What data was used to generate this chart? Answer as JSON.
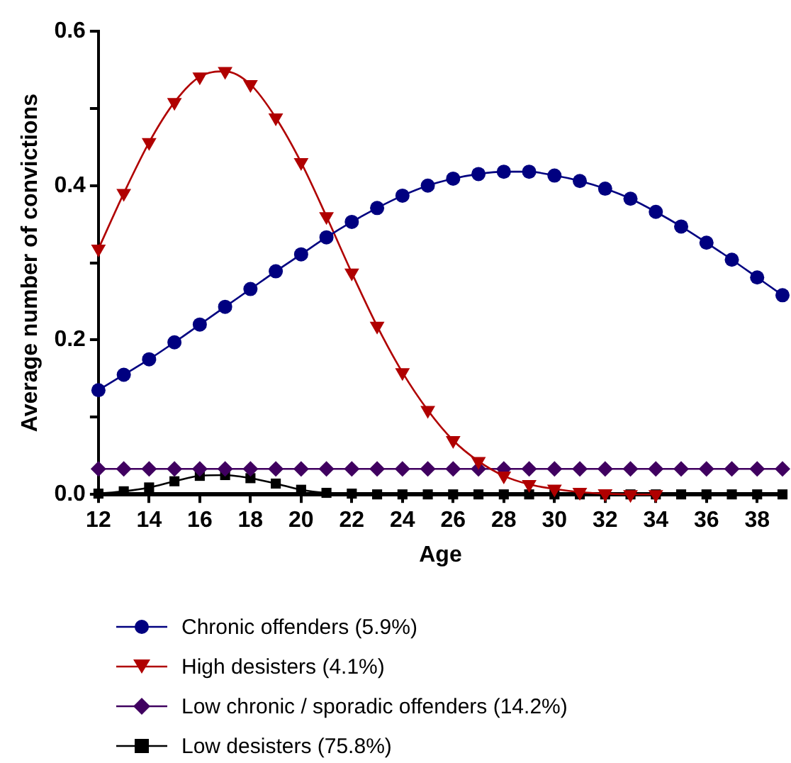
{
  "chart_data": {
    "type": "line",
    "xlabel": "Age",
    "ylabel": "Average number of convictions",
    "x": [
      12,
      13,
      14,
      15,
      16,
      17,
      18,
      19,
      20,
      21,
      22,
      23,
      24,
      25,
      26,
      27,
      28,
      29,
      30,
      31,
      32,
      33,
      34,
      35,
      36,
      37,
      38,
      39
    ],
    "xlim": [
      12,
      39
    ],
    "xticks": [
      12,
      14,
      16,
      18,
      20,
      22,
      24,
      26,
      28,
      30,
      32,
      34,
      36,
      38
    ],
    "ylim": [
      0,
      0.6
    ],
    "yticks": [
      {
        "value": 0,
        "label": "0.0"
      },
      {
        "value": 0.1,
        "label": null
      },
      {
        "value": 0.2,
        "label": "0.2"
      },
      {
        "value": 0.3,
        "label": null
      },
      {
        "value": 0.4,
        "label": "0.4"
      },
      {
        "value": 0.5,
        "label": null
      },
      {
        "value": 0.6,
        "label": "0.6"
      }
    ],
    "grid": false,
    "legend": "bottom",
    "series": [
      {
        "name": "Chronic offenders (5.9%)",
        "color": "#000080",
        "marker": "circle",
        "values": [
          0.135,
          0.155,
          0.175,
          0.197,
          0.22,
          0.243,
          0.266,
          0.289,
          0.311,
          0.333,
          0.353,
          0.371,
          0.387,
          0.4,
          0.409,
          0.415,
          0.418,
          0.418,
          0.413,
          0.406,
          0.396,
          0.383,
          0.366,
          0.347,
          0.326,
          0.304,
          0.281,
          0.258
        ]
      },
      {
        "name": "High desisters (4.1%)",
        "color": "#b00000",
        "marker": "triangle",
        "values": [
          0.318,
          0.39,
          0.456,
          0.508,
          0.541,
          0.548,
          0.531,
          0.488,
          0.43,
          0.36,
          0.287,
          0.218,
          0.158,
          0.109,
          0.07,
          0.043,
          0.024,
          0.013,
          0.007,
          0.003,
          0.001,
          0,
          0,
          null,
          null,
          null,
          null,
          null
        ]
      },
      {
        "name": "Low chronic / sporadic offenders (14.2%)",
        "color": "#400060",
        "marker": "diamond",
        "values": [
          0.033,
          0.033,
          0.033,
          0.033,
          0.033,
          0.033,
          0.033,
          0.033,
          0.033,
          0.033,
          0.033,
          0.033,
          0.033,
          0.033,
          0.033,
          0.033,
          0.033,
          0.033,
          0.033,
          0.033,
          0.033,
          0.033,
          0.033,
          0.033,
          0.033,
          0.033,
          0.033,
          0.033
        ]
      },
      {
        "name": "Low desisters (75.8%)",
        "color": "#000000",
        "marker": "square",
        "values": [
          0.001,
          0.004,
          0.009,
          0.017,
          0.024,
          0.025,
          0.021,
          0.014,
          0.006,
          0.002,
          0.001,
          0,
          0,
          0,
          0,
          0,
          0,
          0,
          0,
          0,
          0,
          0,
          0,
          0,
          0,
          0,
          0,
          0
        ]
      }
    ]
  }
}
